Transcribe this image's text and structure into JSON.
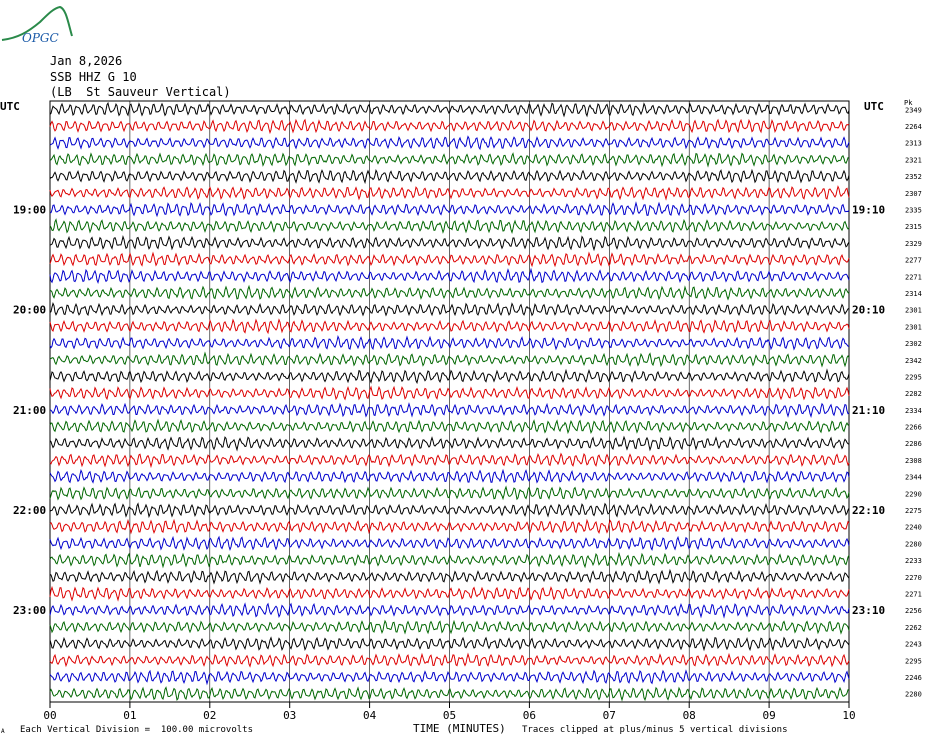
{
  "logo": {
    "text": "OPGC",
    "color": "#2a8a4a",
    "text_color": "#1b5aa8"
  },
  "header": {
    "date": "Jan 8,2026",
    "station": "SSB HHZ G 10",
    "description": "(LB  St Sauveur Vertical)"
  },
  "left_axis_label": "UTC",
  "right_axis_label": "UTC",
  "right_header_label": "Pk",
  "footer": {
    "scale_note": "Each Vertical Division =  100.00 microvolts",
    "xlabel": "TIME (MINUTES)",
    "clip_note": "Traces clipped at plus/minus 5 vertical divisions",
    "corner_mark": "A"
  },
  "chart_data": {
    "type": "line",
    "title": "",
    "xlabel": "TIME (MINUTES)",
    "ylabel": "",
    "xlim": [
      0,
      10
    ],
    "x_ticks": [
      "00",
      "01",
      "02",
      "03",
      "04",
      "05",
      "06",
      "07",
      "08",
      "09",
      "10"
    ],
    "grid": true,
    "trace_colors": [
      "#000000",
      "#dd0000",
      "#0000cc",
      "#006600"
    ],
    "left_hour_labels": [
      {
        "row": 6,
        "label": "19:00"
      },
      {
        "row": 12,
        "label": "20:00"
      },
      {
        "row": 18,
        "label": "21:00"
      },
      {
        "row": 24,
        "label": "22:00"
      },
      {
        "row": 30,
        "label": "23:00"
      }
    ],
    "right_hour_labels": [
      {
        "row": 6,
        "label": "19:10"
      },
      {
        "row": 12,
        "label": "20:10"
      },
      {
        "row": 18,
        "label": "21:10"
      },
      {
        "row": 24,
        "label": "22:10"
      },
      {
        "row": 30,
        "label": "23:10"
      }
    ],
    "peak_values": [
      "2349",
      "2264",
      "2313",
      "2321",
      "2352",
      "2307",
      "2335",
      "2315",
      "2329",
      "2277",
      "2271",
      "2314",
      "2301",
      "2301",
      "2302",
      "2342",
      "2295",
      "2282",
      "2334",
      "2266",
      "2286",
      "2308",
      "2344",
      "2290",
      "2275",
      "2240",
      "2280",
      "2233",
      "2270",
      "2271",
      "2256",
      "2262",
      "2243",
      "2295",
      "2246",
      "2280"
    ]
  }
}
